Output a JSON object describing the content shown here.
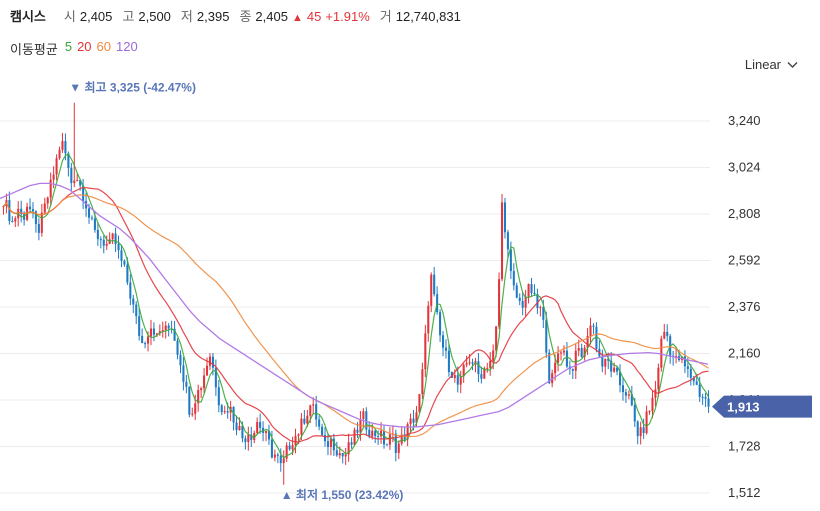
{
  "header": {
    "name": "캠시스",
    "open_label": "시",
    "open": "2,405",
    "high_label": "고",
    "high": "2,500",
    "low_label": "저",
    "low": "2,395",
    "close_label": "종",
    "close": "2,405",
    "change_arrow": "▲",
    "change": "45",
    "change_pct": "+1.91%",
    "volume_label": "거",
    "volume": "12,740,831"
  },
  "moving_average": {
    "title": "이동평균",
    "periods": [
      {
        "label": "5",
        "color": "#3aa93a"
      },
      {
        "label": "20",
        "color": "#e2343a"
      },
      {
        "label": "60",
        "color": "#f08a3c"
      },
      {
        "label": "120",
        "color": "#9b6ad9"
      }
    ]
  },
  "scale_selector": {
    "value": "Linear"
  },
  "colors": {
    "up": "#e2343a",
    "down": "#1f7ac4",
    "ma5": "#3aa93a",
    "ma20": "#e2343a",
    "ma60": "#f08a3c",
    "ma120": "#b17be6",
    "tag": "#4a62a8",
    "grid": "#ececec"
  },
  "chart_data": {
    "type": "candlestick",
    "y_ticks": [
      "3,240",
      "3,024",
      "2,808",
      "2,592",
      "2,376",
      "2,160",
      "1,944",
      "1,728",
      "1,512"
    ],
    "y_tick_values": [
      3240,
      3024,
      2808,
      2592,
      2376,
      2160,
      1944,
      1728,
      1512
    ],
    "ylim": [
      1512,
      3240
    ],
    "current_price": 1913,
    "current_price_label": "1,913",
    "high_annotation": {
      "marker": "▼",
      "text": "최고 3,325 (-42.47%)",
      "value": 3325
    },
    "low_annotation": {
      "marker": "▲",
      "text": "최저 1,550 (23.42%)",
      "value": 1550
    },
    "close_path": [
      2880,
      2820,
      2760,
      2840,
      2780,
      2860,
      2800,
      2720,
      2780,
      2870,
      2950,
      3050,
      3150,
      3080,
      2950,
      3000,
      2940,
      2880,
      2780,
      2720,
      2700,
      2680,
      2650,
      2700,
      2620,
      2560,
      2480,
      2380,
      2280,
      2200,
      2260,
      2300,
      2230,
      2280,
      2260,
      2300,
      2200,
      2120,
      2000,
      1880,
      1960,
      2000,
      2080,
      2160,
      2060,
      1940,
      1880,
      1920,
      1860,
      1820,
      1760,
      1800,
      1780,
      1850,
      1800,
      1760,
      1700,
      1680,
      1620,
      1700,
      1760,
      1780,
      1820,
      1880,
      1920,
      1880,
      1800,
      1720,
      1760,
      1740,
      1700,
      1680,
      1720,
      1760,
      1820,
      1860,
      1820,
      1780,
      1800,
      1760,
      1740,
      1780,
      1720,
      1760,
      1800,
      1840,
      1880,
      1980,
      2240,
      2540,
      2380,
      2240,
      2160,
      2100,
      2050,
      2000,
      2080,
      2140,
      2120,
      2060,
      2080,
      2120,
      2140,
      2320,
      2880,
      2660,
      2480,
      2420,
      2380,
      2440,
      2460,
      2380,
      2360,
      2240,
      2000,
      2100,
      2200,
      2160,
      2080,
      2120,
      2180,
      2140,
      2300,
      2280,
      2160,
      2100,
      2120,
      2080,
      2040,
      2000,
      1980,
      1900,
      1800,
      1780,
      1860,
      1920,
      2000,
      2200,
      2280,
      2180,
      2120,
      2140,
      2100,
      2060,
      2040,
      1980,
      1960,
      1913
    ],
    "ma120_path": [
      2880,
      2900,
      2920,
      2940,
      2950,
      2950,
      2940,
      2920,
      2880,
      2840,
      2800,
      2770,
      2740,
      2700,
      2650,
      2600,
      2540,
      2480,
      2420,
      2360,
      2310,
      2270,
      2230,
      2200,
      2170,
      2140,
      2110,
      2080,
      2050,
      2020,
      1990,
      1960,
      1935,
      1915,
      1895,
      1875,
      1855,
      1840,
      1830,
      1825,
      1820,
      1818,
      1820,
      1825,
      1830,
      1840,
      1850,
      1860,
      1870,
      1880,
      1890,
      1910,
      1940,
      1970,
      2000,
      2030,
      2060,
      2090,
      2110,
      2130,
      2140,
      2150,
      2155,
      2160,
      2162,
      2164,
      2160,
      2150,
      2140,
      2130,
      2120,
      2110
    ]
  }
}
